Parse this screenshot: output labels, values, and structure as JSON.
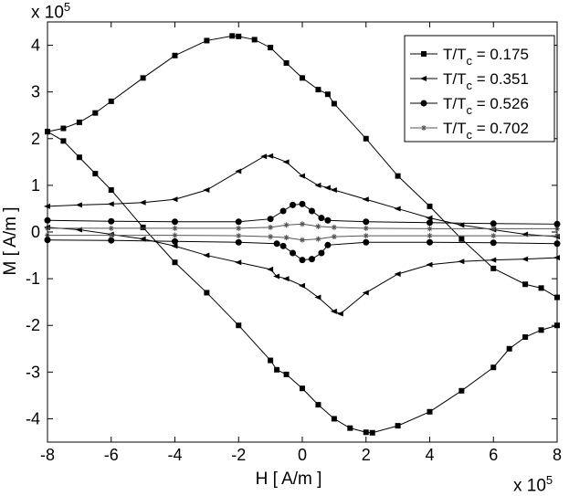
{
  "chart_data": {
    "type": "line",
    "title": "",
    "xlabel": "H [ A/m ]",
    "ylabel": "M [ A/m ]",
    "x_multiplier": "x 10",
    "x_multiplier_exp": "5",
    "y_multiplier": "x 10",
    "y_multiplier_exp": "5",
    "xlim": [
      -8,
      8
    ],
    "ylim": [
      -4.5,
      4.5
    ],
    "x_ticks": [
      "-8",
      "-6",
      "-4",
      "-2",
      "0",
      "2",
      "4",
      "6",
      "8"
    ],
    "y_ticks": [
      "-4",
      "-3",
      "-2",
      "-1",
      "0",
      "1",
      "2",
      "3",
      "4"
    ],
    "grid": false,
    "legend_position": "top-right",
    "series": [
      {
        "name": "T/T",
        "name_sub": "c",
        "name_value": " = 0.175",
        "marker": "square",
        "color": "#000000",
        "x": [
          -8,
          -7.5,
          -7,
          -6.5,
          -6,
          -5,
          -4,
          -3,
          -2.2,
          -2,
          -1.5,
          -1,
          -0.5,
          0,
          0.5,
          0.8,
          1,
          2,
          3,
          4,
          5,
          6,
          7,
          7.5,
          8,
          8,
          7.5,
          7,
          6.5,
          6,
          5,
          4,
          3,
          2.2,
          2,
          1.5,
          1,
          0.5,
          0,
          -0.5,
          -0.8,
          -1,
          -2,
          -3,
          -4,
          -5,
          -6,
          -6.5,
          -7,
          -7.5,
          -8
        ],
        "y": [
          2.15,
          2.22,
          2.35,
          2.55,
          2.8,
          3.3,
          3.78,
          4.1,
          4.2,
          4.19,
          4.12,
          3.95,
          3.62,
          3.3,
          3.05,
          2.95,
          2.75,
          2.0,
          1.2,
          0.55,
          -0.15,
          -0.78,
          -1.12,
          -1.2,
          -1.4,
          -2.0,
          -2.1,
          -2.25,
          -2.5,
          -2.9,
          -3.4,
          -3.85,
          -4.15,
          -4.3,
          -4.29,
          -4.2,
          -4.0,
          -3.7,
          -3.35,
          -3.05,
          -2.95,
          -2.75,
          -2.0,
          -1.3,
          -0.65,
          0.1,
          0.9,
          1.25,
          1.6,
          1.95,
          2.15
        ]
      },
      {
        "name": "T/T",
        "name_sub": "c",
        "name_value": " = 0.351",
        "marker": "triangle-left",
        "color": "#000000",
        "x": [
          -8,
          -7,
          -6,
          -5,
          -4,
          -3,
          -2,
          -1.2,
          -1,
          -0.5,
          0,
          0.5,
          0.8,
          1,
          2,
          3,
          4,
          5,
          6,
          7,
          8,
          8,
          7,
          6,
          5,
          4,
          3,
          2,
          1.2,
          1,
          0.5,
          0,
          -0.5,
          -0.8,
          -1,
          -2,
          -3,
          -4,
          -5,
          -6,
          -7,
          -8
        ],
        "y": [
          0.55,
          0.58,
          0.6,
          0.63,
          0.7,
          0.9,
          1.3,
          1.62,
          1.63,
          1.5,
          1.2,
          1.0,
          0.95,
          0.9,
          0.7,
          0.5,
          0.3,
          0.15,
          0.05,
          -0.05,
          -0.1,
          -0.55,
          -0.58,
          -0.6,
          -0.63,
          -0.7,
          -0.9,
          -1.3,
          -1.75,
          -1.7,
          -1.4,
          -1.15,
          -1.0,
          -0.95,
          -0.8,
          -0.65,
          -0.5,
          -0.3,
          -0.15,
          -0.05,
          0.05,
          0.1
        ]
      },
      {
        "name": "T/T",
        "name_sub": "c",
        "name_value": " = 0.526",
        "marker": "circle",
        "color": "#000000",
        "x": [
          -8,
          -6,
          -4,
          -2,
          -1,
          -0.6,
          -0.3,
          0,
          0.3,
          0.6,
          0.8,
          2,
          4,
          6,
          8,
          8,
          6,
          4,
          2,
          0.8,
          0.6,
          0.3,
          0,
          -0.3,
          -0.6,
          -0.8,
          -2,
          -4,
          -6,
          -8
        ],
        "y": [
          0.25,
          0.23,
          0.22,
          0.22,
          0.28,
          0.45,
          0.58,
          0.6,
          0.45,
          0.3,
          0.25,
          0.22,
          0.2,
          0.18,
          0.17,
          -0.25,
          -0.23,
          -0.22,
          -0.22,
          -0.28,
          -0.45,
          -0.58,
          -0.6,
          -0.45,
          -0.3,
          -0.25,
          -0.22,
          -0.2,
          -0.18,
          -0.17
        ]
      },
      {
        "name": "T/T",
        "name_sub": "c",
        "name_value": " = 0.702",
        "marker": "star",
        "color": "#555555",
        "x": [
          -8,
          -6,
          -4,
          -2,
          -1,
          -0.5,
          0,
          0.5,
          1,
          2,
          4,
          6,
          8,
          8,
          6,
          4,
          2,
          1,
          0.5,
          0,
          -0.5,
          -1,
          -2,
          -4,
          -6,
          -8
        ],
        "y": [
          0.08,
          0.08,
          0.08,
          0.08,
          0.1,
          0.15,
          0.17,
          0.12,
          0.1,
          0.08,
          0.07,
          0.07,
          0.07,
          -0.08,
          -0.08,
          -0.08,
          -0.08,
          -0.1,
          -0.15,
          -0.17,
          -0.12,
          -0.1,
          -0.08,
          -0.07,
          -0.07,
          -0.07
        ]
      }
    ]
  }
}
